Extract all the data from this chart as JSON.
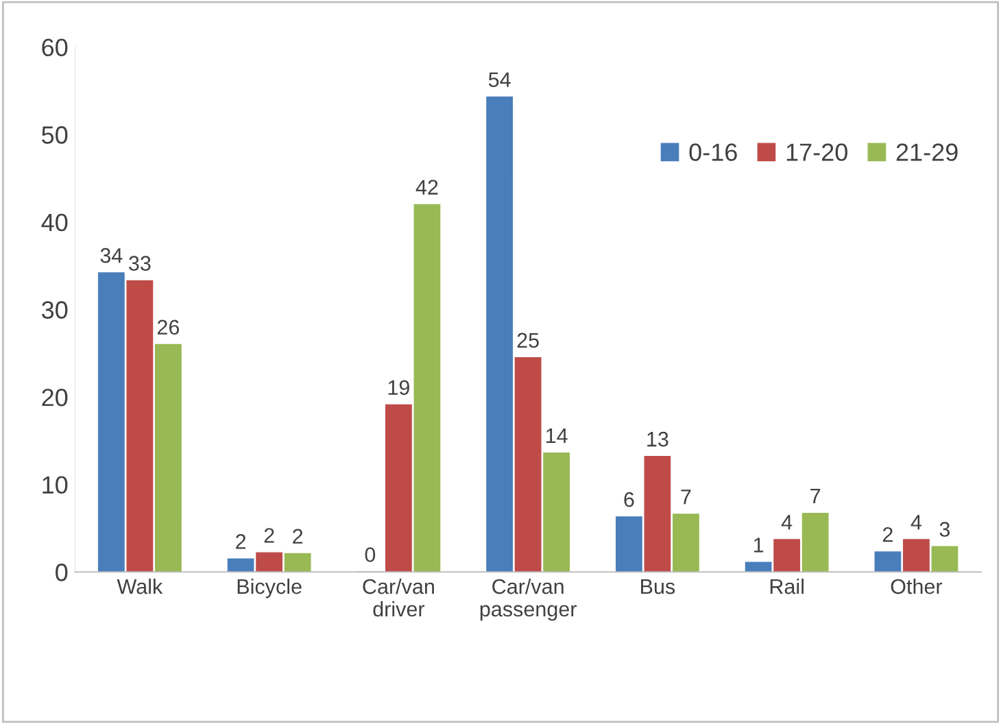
{
  "chart_data": {
    "type": "bar",
    "categories": [
      "Walk",
      "Bicycle",
      "Car/van\ndriver",
      "Car/van\npassenger",
      "Bus",
      "Rail",
      "Other"
    ],
    "series": [
      {
        "name": "0-16",
        "color": "#4a7ebb",
        "values": [
          34.2,
          1.5,
          0,
          54.3,
          6.3,
          1.1,
          2.3
        ],
        "value_labels": [
          "34",
          "2",
          "0",
          "54",
          "6",
          "1",
          "2"
        ]
      },
      {
        "name": "17-20",
        "color": "#be4b48",
        "values": [
          33.3,
          2.2,
          19.1,
          24.5,
          13.2,
          3.7,
          3.7
        ],
        "value_labels": [
          "33",
          "2",
          "19",
          "25",
          "13",
          "4",
          "4"
        ]
      },
      {
        "name": "21-29",
        "color": "#98b954",
        "values": [
          26,
          2.1,
          42,
          13.6,
          6.6,
          6.7,
          2.9
        ],
        "value_labels": [
          "26",
          "2",
          "42",
          "14",
          "7",
          "7",
          "3"
        ]
      }
    ],
    "ylim": [
      0,
      60
    ],
    "yticks": [
      0,
      10,
      20,
      30,
      40,
      50,
      60
    ],
    "grid": false,
    "legend": "top right"
  }
}
